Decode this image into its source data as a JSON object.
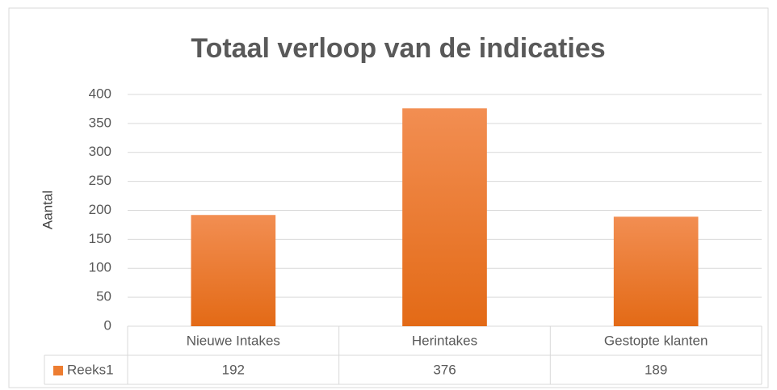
{
  "chart_data": {
    "type": "bar",
    "title": "Totaal verloop van de indicaties",
    "y_label": "Aantal",
    "categories": [
      "Nieuwe Intakes",
      "Herintakes",
      "Gestopte klanten"
    ],
    "series": [
      {
        "name": "Reeks1",
        "color": "#ed7d31",
        "values": [
          192,
          376,
          189
        ]
      }
    ],
    "ylim": [
      0,
      400
    ],
    "yticks": [
      0,
      50,
      100,
      150,
      200,
      250,
      300,
      350,
      400
    ],
    "grid": true,
    "data_table": true
  }
}
